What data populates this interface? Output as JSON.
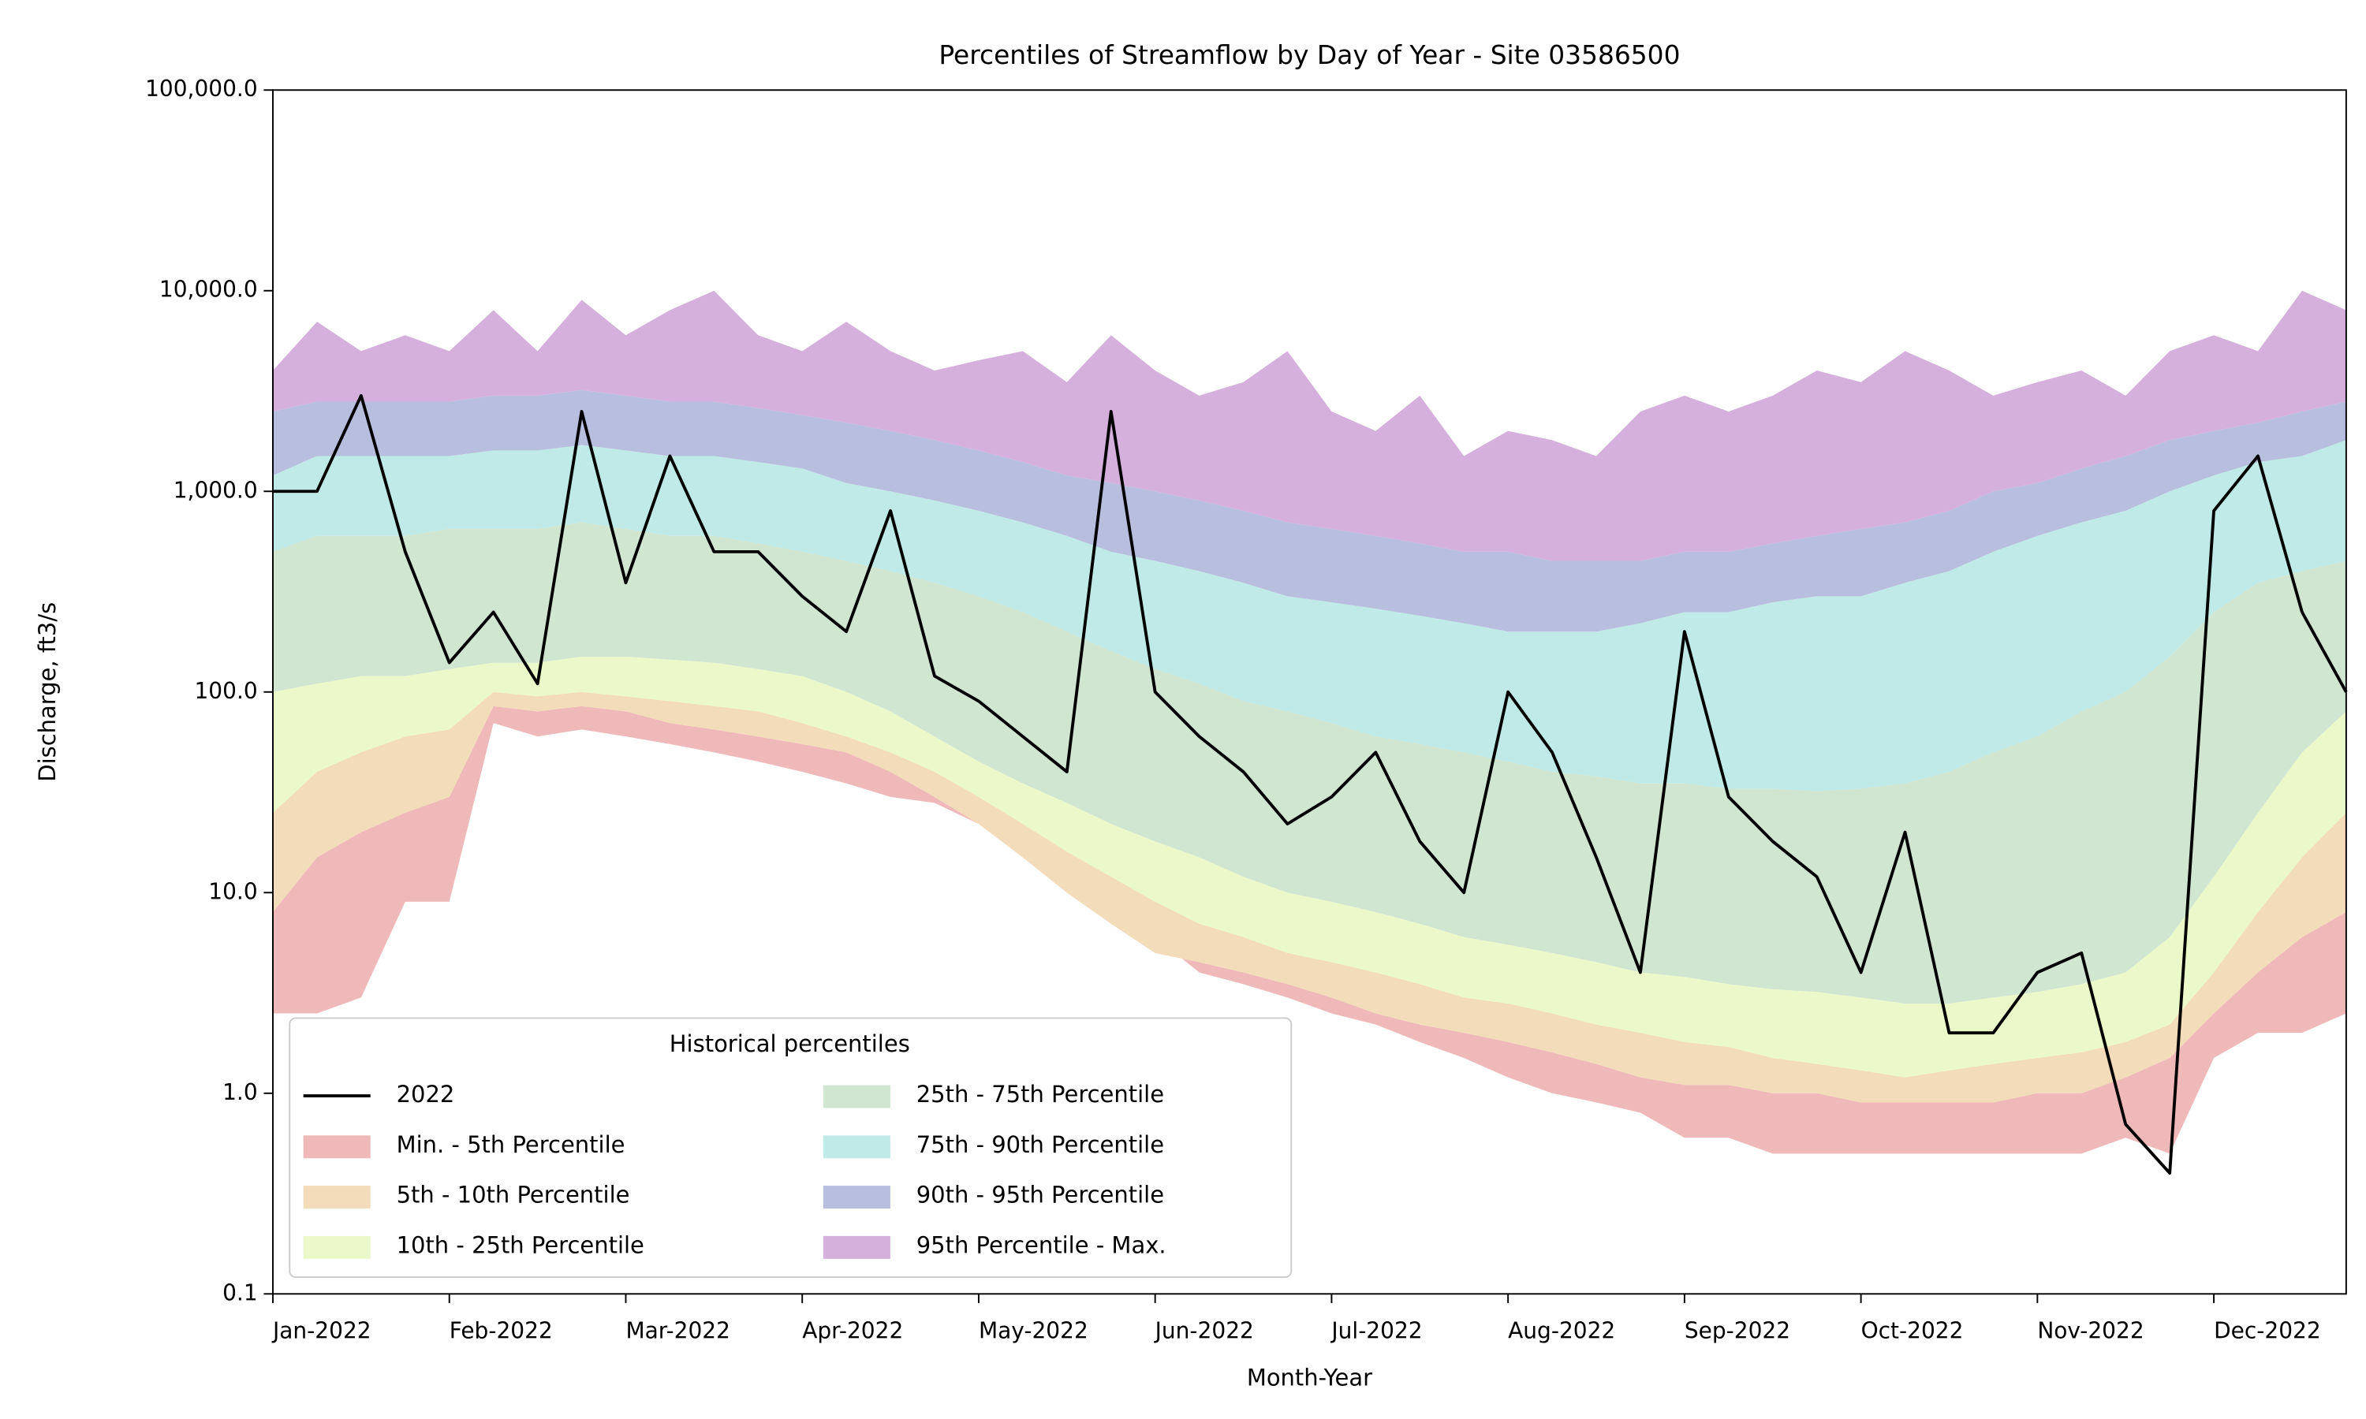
{
  "chart_data": {
    "type": "percentile_bands",
    "title": "Percentiles of Streamflow by Day of Year - Site 03586500",
    "x_label": "Month-Year",
    "y_label": "Discharge, ft3/s",
    "categories": [
      "Jan-2022",
      null,
      null,
      null,
      "Feb-2022",
      null,
      null,
      null,
      "Mar-2022",
      null,
      null,
      null,
      "Apr-2022",
      null,
      null,
      null,
      "May-2022",
      null,
      null,
      null,
      "Jun-2022",
      null,
      null,
      null,
      "Jul-2022",
      null,
      null,
      null,
      "Aug-2022",
      null,
      null,
      null,
      "Sep-2022",
      null,
      null,
      null,
      "Oct-2022",
      null,
      null,
      null,
      "Nov-2022",
      null,
      null,
      null,
      "Dec-2022",
      null,
      null,
      null
    ],
    "log_scale": true,
    "ylim": [
      0.1,
      100000
    ],
    "yticks": [
      0.1,
      {
        "value": 1,
        "label": "1.0"
      },
      {
        "value": 10,
        "label": "10.0"
      },
      {
        "value": 100,
        "label": "100.0"
      },
      {
        "value": 1000,
        "label": "1,000.0"
      },
      {
        "value": 10000,
        "label": "10,000.0"
      },
      {
        "value": 100000,
        "label": "100,000.0"
      }
    ],
    "legend_title": "Historical percentiles",
    "legend_loc": "lower left",
    "lower_values": [
      2.5,
      2.5,
      3,
      9,
      9,
      70,
      60,
      65,
      60,
      55,
      50,
      45,
      40,
      35,
      30,
      28,
      22,
      18,
      14,
      10,
      6,
      4,
      3.5,
      3,
      2.5,
      2.2,
      1.8,
      1.5,
      1.2,
      1,
      0.9,
      0.8,
      0.6,
      0.6,
      0.5,
      0.5,
      0.5,
      0.5,
      0.5,
      0.5,
      0.5,
      0.5,
      0.6,
      0.5,
      1.5,
      2,
      2,
      2.5
    ],
    "bands": [
      {
        "name": "Min. - 5th Percentile",
        "color": "#f0b9b9",
        "values": [
          8,
          15,
          20,
          25,
          30,
          85,
          80,
          85,
          80,
          70,
          65,
          60,
          55,
          50,
          40,
          30,
          22,
          15,
          10,
          7,
          5,
          4.5,
          4,
          3.5,
          3,
          2.5,
          2.2,
          2,
          1.8,
          1.6,
          1.4,
          1.2,
          1.1,
          1.1,
          1,
          1,
          0.9,
          0.9,
          0.9,
          0.9,
          1,
          1,
          1.2,
          1.5,
          2.5,
          4,
          6,
          8
        ]
      },
      {
        "name": "5th - 10th Percentile",
        "color": "#f3dcb9",
        "values": [
          25,
          40,
          50,
          60,
          65,
          100,
          95,
          100,
          95,
          90,
          85,
          80,
          70,
          60,
          50,
          40,
          30,
          22,
          16,
          12,
          9,
          7,
          6,
          5,
          4.5,
          4,
          3.5,
          3,
          2.8,
          2.5,
          2.2,
          2,
          1.8,
          1.7,
          1.5,
          1.4,
          1.3,
          1.2,
          1.3,
          1.4,
          1.5,
          1.6,
          1.8,
          2.2,
          4,
          8,
          15,
          25
        ]
      },
      {
        "name": "10th - 25th Percentile",
        "color": "#ebf8c9",
        "values": [
          100,
          110,
          120,
          120,
          130,
          140,
          140,
          150,
          150,
          145,
          140,
          130,
          120,
          100,
          80,
          60,
          45,
          35,
          28,
          22,
          18,
          15,
          12,
          10,
          9,
          8,
          7,
          6,
          5.5,
          5,
          4.5,
          4,
          3.8,
          3.5,
          3.3,
          3.2,
          3,
          2.8,
          2.8,
          3,
          3.2,
          3.5,
          4,
          6,
          12,
          25,
          50,
          80
        ]
      },
      {
        "name": "25th - 75th Percentile",
        "color": "#d0e6d1",
        "values": [
          500,
          600,
          600,
          600,
          650,
          650,
          650,
          700,
          650,
          600,
          600,
          550,
          500,
          450,
          400,
          350,
          300,
          250,
          200,
          160,
          130,
          110,
          90,
          80,
          70,
          60,
          55,
          50,
          45,
          40,
          38,
          35,
          35,
          33,
          33,
          32,
          33,
          35,
          40,
          50,
          60,
          80,
          100,
          150,
          250,
          350,
          400,
          450
        ]
      },
      {
        "name": "75th - 90th Percentile",
        "color": "#bfeae7",
        "values": [
          1200,
          1500,
          1500,
          1500,
          1500,
          1600,
          1600,
          1700,
          1600,
          1500,
          1500,
          1400,
          1300,
          1100,
          1000,
          900,
          800,
          700,
          600,
          500,
          450,
          400,
          350,
          300,
          280,
          260,
          240,
          220,
          200,
          200,
          200,
          220,
          250,
          250,
          280,
          300,
          300,
          350,
          400,
          500,
          600,
          700,
          800,
          1000,
          1200,
          1400,
          1500,
          1800
        ]
      },
      {
        "name": "90th - 95th Percentile",
        "color": "#b8bedd",
        "values": [
          2500,
          2800,
          2800,
          2800,
          2800,
          3000,
          3000,
          3200,
          3000,
          2800,
          2800,
          2600,
          2400,
          2200,
          2000,
          1800,
          1600,
          1400,
          1200,
          1100,
          1000,
          900,
          800,
          700,
          650,
          600,
          550,
          500,
          500,
          450,
          450,
          450,
          500,
          500,
          550,
          600,
          650,
          700,
          800,
          1000,
          1100,
          1300,
          1500,
          1800,
          2000,
          2200,
          2500,
          2800
        ]
      },
      {
        "name": "95th Percentile - Max.",
        "color": "#d5b0dc",
        "values": [
          4000,
          7000,
          5000,
          6000,
          5000,
          8000,
          5000,
          9000,
          6000,
          8000,
          10000,
          6000,
          5000,
          7000,
          5000,
          4000,
          4500,
          5000,
          3500,
          6000,
          4000,
          3000,
          3500,
          5000,
          2500,
          2000,
          3000,
          1500,
          2000,
          1800,
          1500,
          2500,
          3000,
          2500,
          3000,
          4000,
          3500,
          5000,
          4000,
          3000,
          3500,
          4000,
          3000,
          5000,
          6000,
          5000,
          10000,
          8000
        ]
      }
    ],
    "series": [
      {
        "name": "2022",
        "color": "#000000",
        "values": [
          1000,
          1000,
          3000,
          500,
          140,
          250,
          110,
          2500,
          350,
          1500,
          500,
          500,
          300,
          200,
          800,
          120,
          90,
          60,
          40,
          2500,
          100,
          60,
          40,
          22,
          30,
          50,
          18,
          10,
          100,
          50,
          15,
          4,
          200,
          30,
          18,
          12,
          4,
          20,
          2,
          2,
          4,
          5,
          0.7,
          0.4,
          800,
          1500,
          250,
          100
        ]
      }
    ]
  }
}
